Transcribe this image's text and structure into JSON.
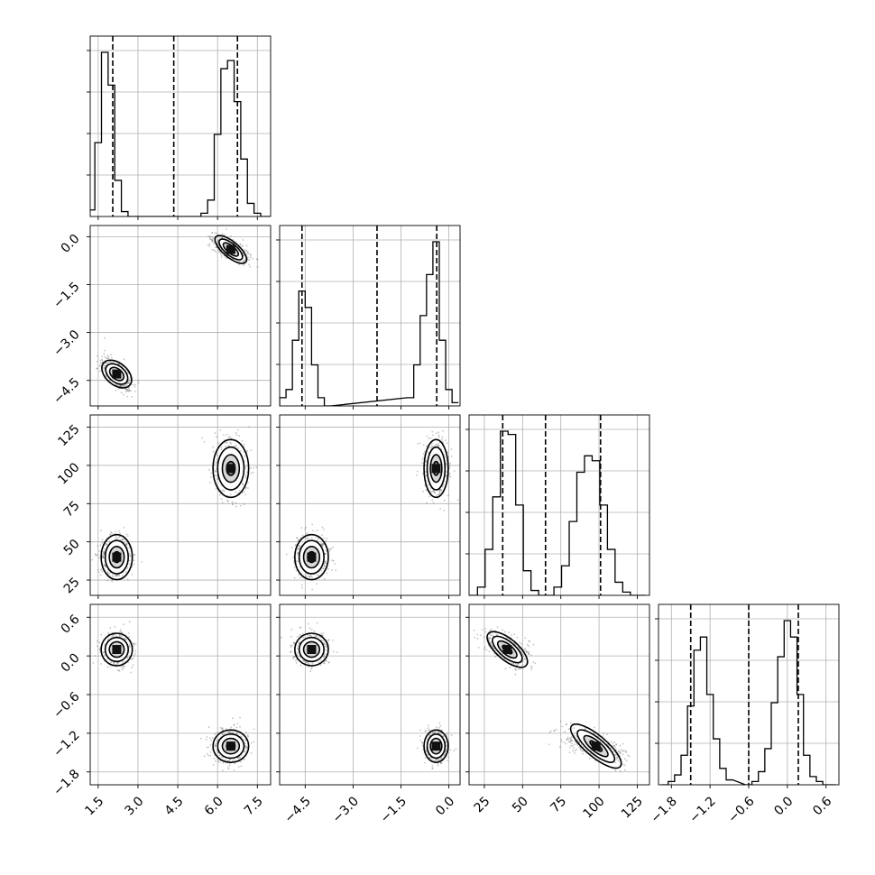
{
  "chart_data": {
    "type": "corner",
    "parameters": 4,
    "axis_ranges": [
      [
        1.2,
        8.0
      ],
      [
        -5.3,
        0.35
      ],
      [
        15,
        133
      ],
      [
        -2.0,
        0.8
      ]
    ],
    "ticks": [
      {
        "values": [
          1.5,
          3.0,
          4.5,
          6.0,
          7.5
        ],
        "labels": [
          "1.5",
          "3.0",
          "4.5",
          "6.0",
          "7.5"
        ]
      },
      {
        "values": [
          -4.5,
          -3.0,
          -1.5,
          0.0
        ],
        "labels": [
          "−4.5",
          "−3.0",
          "−1.5",
          "0.0"
        ]
      },
      {
        "values": [
          25,
          50,
          75,
          100,
          125
        ],
        "labels": [
          "25",
          "50",
          "75",
          "100",
          "125"
        ]
      },
      {
        "values": [
          -1.8,
          -1.2,
          -0.6,
          0.0,
          0.6
        ],
        "labels": [
          "−1.8",
          "−1.2",
          "−0.6",
          "0.0",
          "0.6"
        ]
      }
    ],
    "y_tick_labels_shown_on_left_column": [
      {
        "row": 1,
        "labels": [
          "0.0",
          "−1.5",
          "−3.0",
          "−4.5"
        ]
      },
      {
        "row": 2,
        "labels": [
          "125",
          "100",
          "75",
          "50",
          "25"
        ]
      },
      {
        "row": 3,
        "labels": [
          "0.6",
          "0.0",
          "−0.6",
          "−1.2",
          "−1.8"
        ]
      }
    ],
    "quantiles": [
      [
        2.05,
        4.35,
        6.75
      ],
      [
        -4.6,
        -2.25,
        -0.38
      ],
      [
        37,
        65,
        101
      ],
      [
        -1.5,
        -0.6,
        0.17
      ]
    ],
    "modes": [
      {
        "centers": [
          2.2,
          6.5
        ],
        "sigmas": [
          0.28,
          0.32
        ],
        "weights": [
          0.5,
          0.5
        ]
      },
      {
        "centers": [
          -4.3,
          -0.4
        ],
        "sigmas": [
          0.25,
          0.18
        ],
        "weights": [
          0.5,
          0.5
        ]
      },
      {
        "centers": [
          40,
          98
        ],
        "sigmas": [
          7,
          9
        ],
        "weights": [
          0.5,
          0.5
        ]
      },
      {
        "centers": [
          0.1,
          -1.4
        ],
        "sigmas": [
          0.12,
          0.12
        ],
        "weights": [
          0.5,
          0.5
        ]
      }
    ],
    "histograms": [
      {
        "param": 0,
        "bin_centers": [
          1.25,
          1.5,
          1.75,
          2.0,
          2.25,
          2.5,
          2.75,
          3.0,
          3.25,
          3.5,
          5.25,
          5.5,
          5.75,
          6.0,
          6.25,
          6.5,
          6.75,
          7.0,
          7.25,
          7.5,
          7.75,
          8.0
        ],
        "counts": [
          4,
          45,
          100,
          80,
          22,
          3,
          0,
          0,
          0,
          0,
          0,
          2,
          10,
          50,
          90,
          95,
          70,
          35,
          8,
          2,
          0,
          0
        ]
      },
      {
        "param": 1,
        "bin_centers": [
          -5.2,
          -5.0,
          -4.8,
          -4.6,
          -4.4,
          -4.2,
          -4.0,
          -3.8,
          -1.2,
          -1.0,
          -0.8,
          -0.6,
          -0.4,
          -0.2,
          0.0,
          0.2
        ],
        "counts": [
          5,
          10,
          40,
          70,
          60,
          25,
          5,
          0,
          5,
          25,
          55,
          80,
          100,
          40,
          10,
          2
        ]
      },
      {
        "param": 2,
        "bin_centers": [
          18,
          23,
          28,
          33,
          38,
          43,
          48,
          53,
          58,
          63,
          68,
          73,
          78,
          83,
          88,
          93,
          98,
          103,
          108,
          113,
          118,
          123,
          128
        ],
        "counts": [
          0,
          5,
          28,
          60,
          100,
          98,
          55,
          15,
          3,
          0,
          0,
          5,
          18,
          45,
          75,
          85,
          82,
          55,
          28,
          8,
          2,
          0,
          0
        ]
      },
      {
        "param": 3,
        "bin_centers": [
          -1.9,
          -1.8,
          -1.7,
          -1.6,
          -1.5,
          -1.4,
          -1.3,
          -1.2,
          -1.1,
          -1.0,
          -0.9,
          -0.6,
          -0.5,
          -0.4,
          -0.3,
          -0.2,
          -0.1,
          0.0,
          0.1,
          0.2,
          0.3,
          0.4,
          0.5,
          0.6,
          0.7
        ],
        "counts": [
          0,
          2,
          6,
          18,
          48,
          82,
          90,
          55,
          28,
          10,
          3,
          0,
          2,
          8,
          22,
          50,
          78,
          100,
          90,
          55,
          18,
          5,
          2,
          0,
          0
        ]
      }
    ],
    "grid": true,
    "title": "",
    "axis_labels": [
      "",
      "",
      "",
      ""
    ]
  }
}
